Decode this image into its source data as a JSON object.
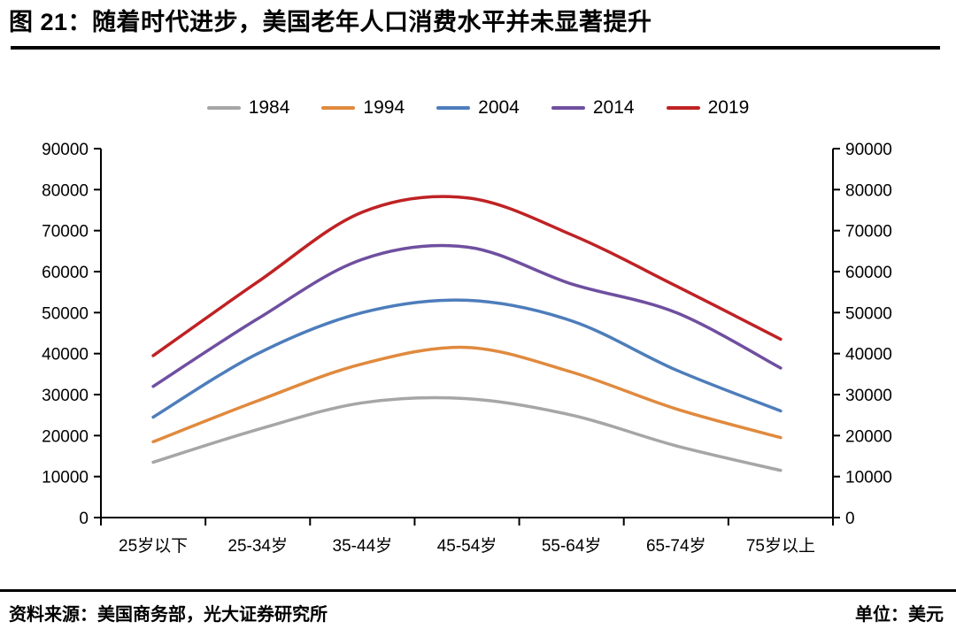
{
  "title": "图 21：随着时代进步，美国老年人口消费水平并未显著提升",
  "footer": {
    "source": "资料来源：美国商务部，光大证券研究所",
    "unit": "单位：美元"
  },
  "chart_data": {
    "type": "line",
    "title": "",
    "xlabel": "",
    "ylabel": "",
    "categories": [
      "25岁以下",
      "25-34岁",
      "35-44岁",
      "45-54岁",
      "55-64岁",
      "65-74岁",
      "75岁以上"
    ],
    "series": [
      {
        "name": "1984",
        "color": "#a6a6a6",
        "values": [
          13500,
          21500,
          28000,
          29000,
          25000,
          17500,
          11500
        ]
      },
      {
        "name": "1994",
        "color": "#e08a3e",
        "values": [
          18500,
          28500,
          37500,
          41500,
          35500,
          26500,
          19500
        ]
      },
      {
        "name": "2004",
        "color": "#4d7dbb",
        "values": [
          24500,
          40000,
          50000,
          53000,
          48000,
          36000,
          26000
        ]
      },
      {
        "name": "2014",
        "color": "#6f4fa0",
        "values": [
          32000,
          48500,
          63000,
          66000,
          57000,
          50000,
          36500
        ]
      },
      {
        "name": "2019",
        "color": "#bf2224",
        "values": [
          39500,
          57500,
          74500,
          78000,
          69000,
          56500,
          43500
        ]
      }
    ],
    "ylim": [
      0,
      90000
    ],
    "ytick_step": 10000,
    "dual_y_axis": true,
    "grid": false,
    "smooth_lines": true,
    "legend_position": "top",
    "axis_color": "#000000"
  }
}
